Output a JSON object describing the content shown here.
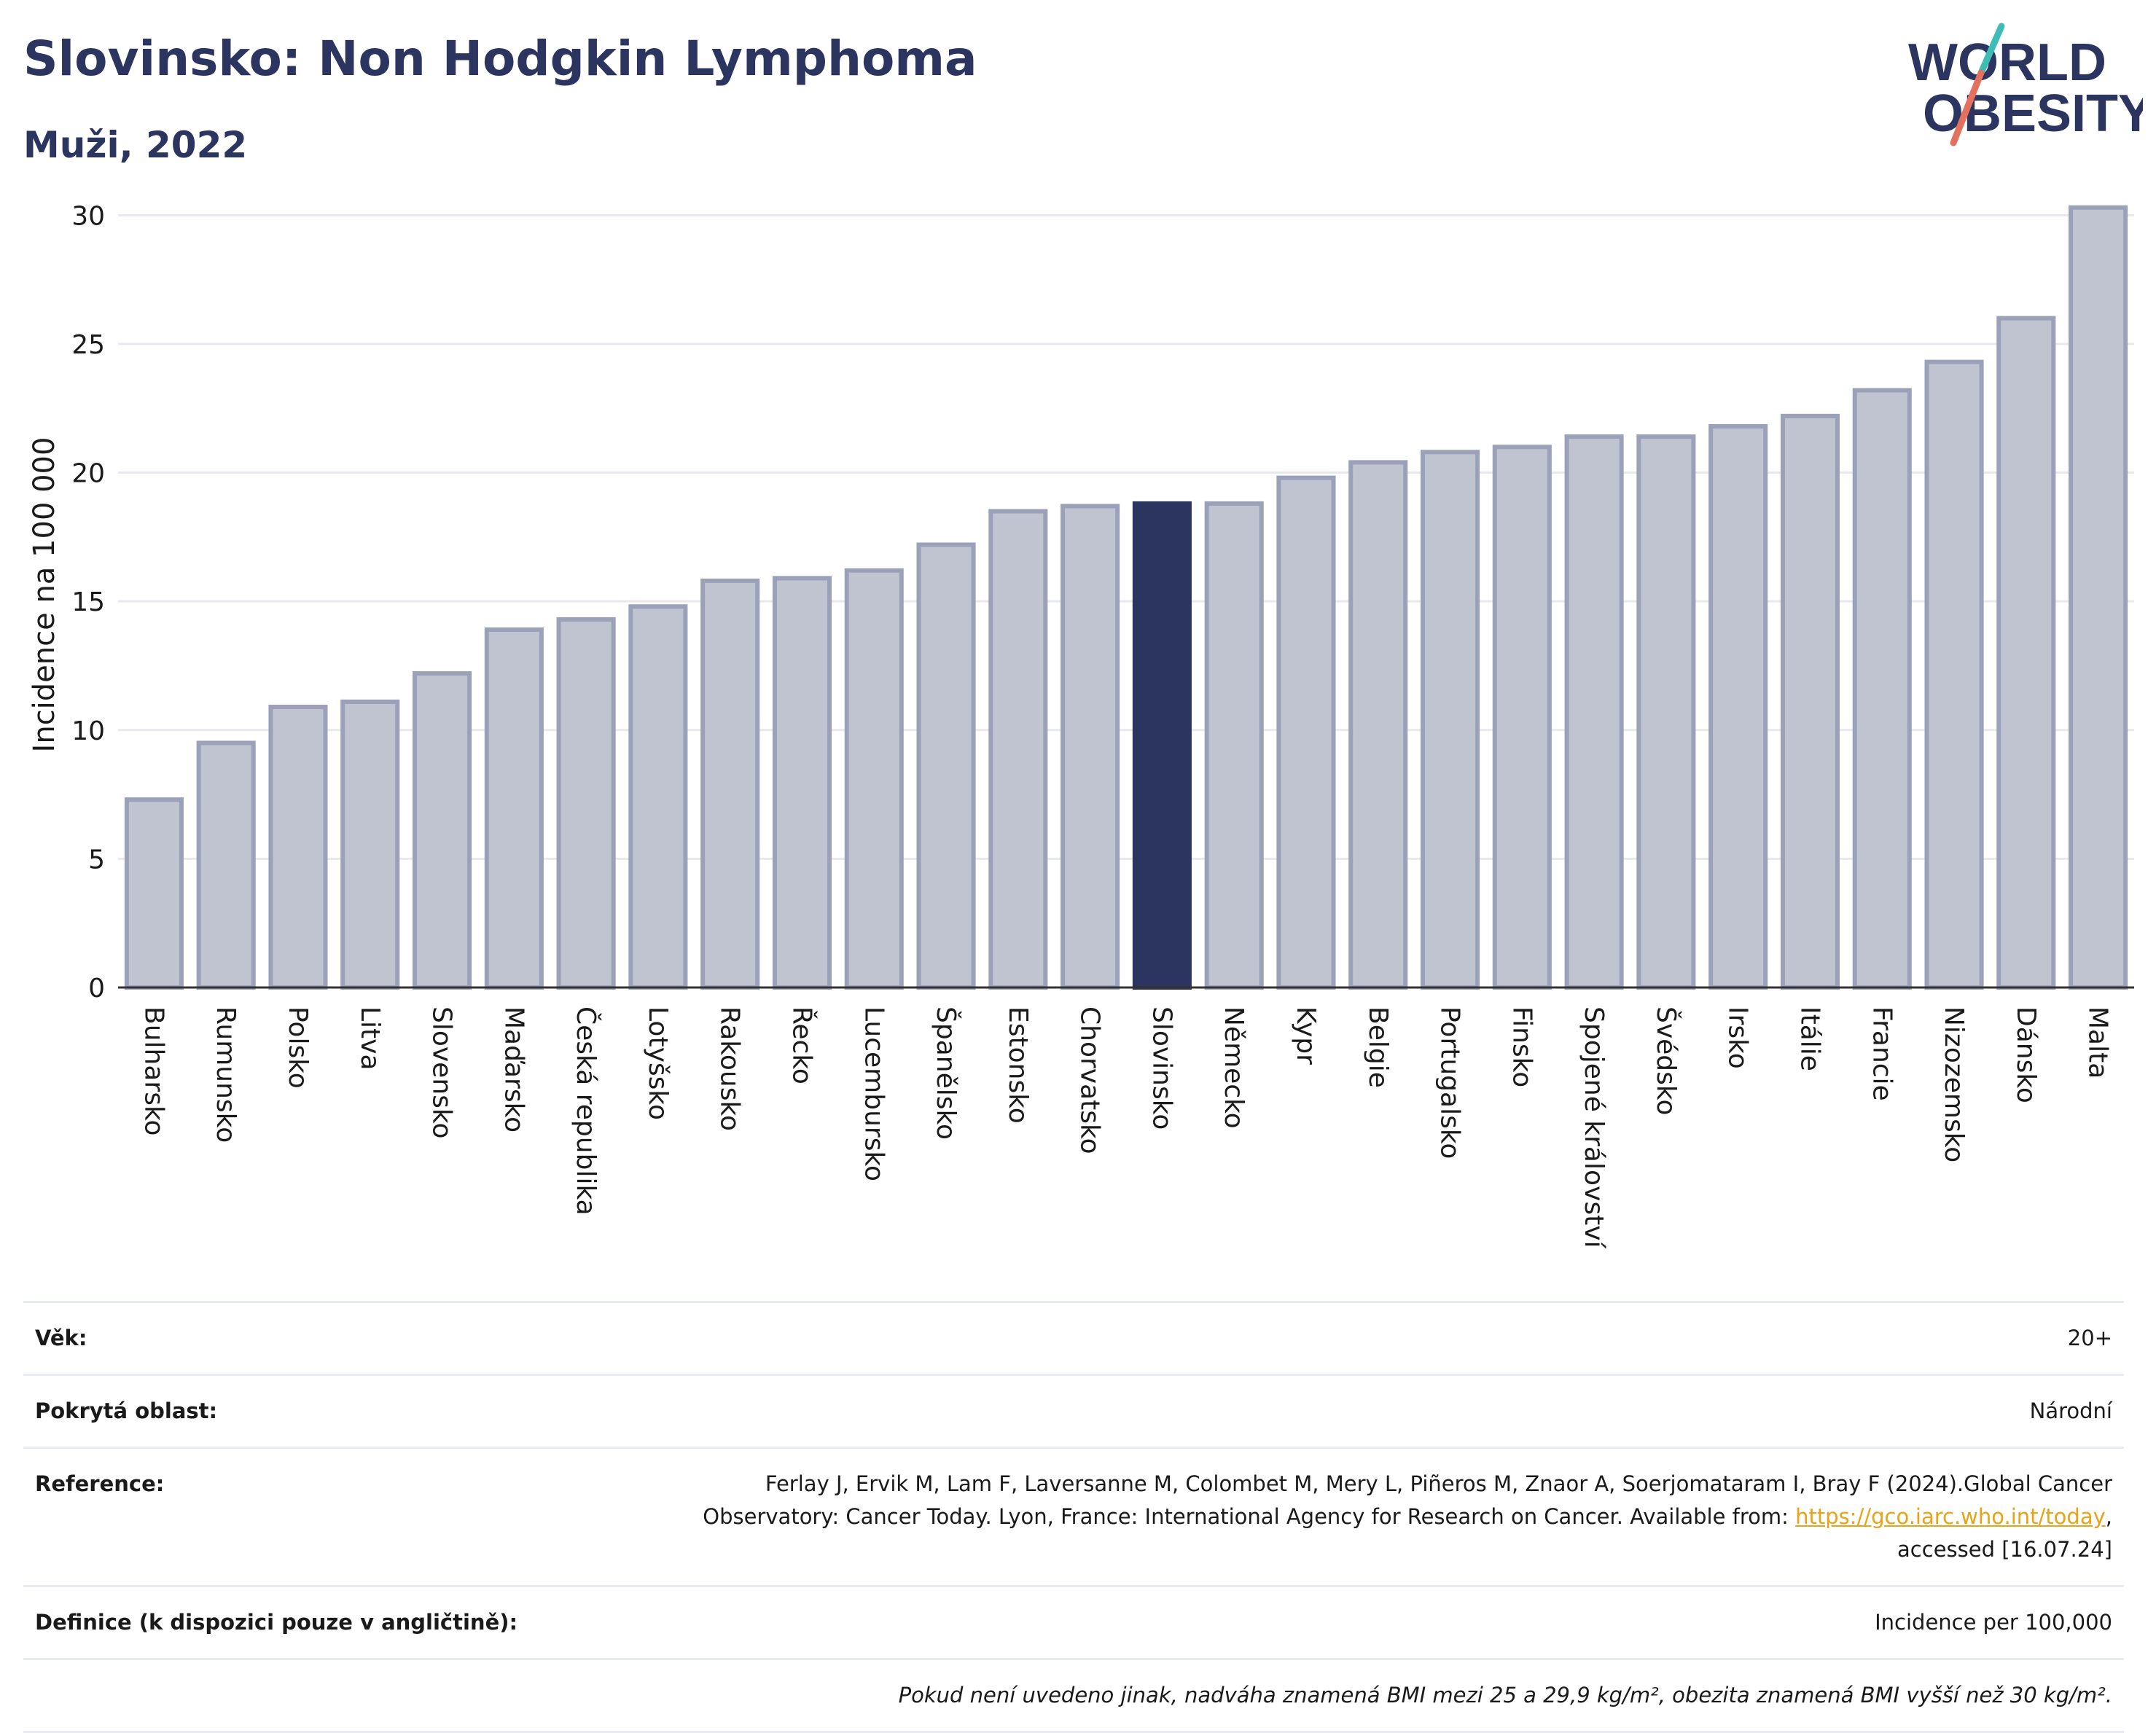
{
  "header": {
    "title": "Slovinsko: Non Hodgkin Lymphoma",
    "subtitle": "Muži, 2022"
  },
  "logo": {
    "line1": "WORLD",
    "line2": "OBESITY",
    "colors": [
      "#2b3560",
      "#e4705f",
      "#3dbdb6"
    ]
  },
  "colors": {
    "bar": "#c0c4d0",
    "bar_border": "#9aa1b8",
    "highlight": "#2b3560",
    "grid": "#e7e9ef",
    "axis": "#333333"
  },
  "chart_data": {
    "type": "bar",
    "ylabel": "Incidence na 100 000",
    "ylim": [
      0,
      31
    ],
    "yticks": [
      0,
      5,
      10,
      15,
      20,
      25,
      30
    ],
    "grid": true,
    "highlight": "Slovinsko",
    "categories": [
      "Bulharsko",
      "Rumunsko",
      "Polsko",
      "Litva",
      "Slovensko",
      "Maďarsko",
      "Česká republika",
      "Lotyšsko",
      "Rakousko",
      "Řecko",
      "Lucembursko",
      "Španělsko",
      "Estonsko",
      "Chorvatsko",
      "Slovinsko",
      "Německo",
      "Kypr",
      "Belgie",
      "Portugalsko",
      "Finsko",
      "Spojené království",
      "Švédsko",
      "Irsko",
      "Itálie",
      "Francie",
      "Nizozemsko",
      "Dánsko",
      "Malta"
    ],
    "values": [
      7.3,
      9.5,
      10.9,
      11.1,
      12.2,
      13.9,
      14.3,
      14.8,
      15.8,
      15.9,
      16.2,
      17.2,
      18.5,
      18.7,
      18.8,
      18.8,
      19.8,
      20.4,
      20.8,
      21.0,
      21.4,
      21.4,
      21.8,
      22.2,
      23.2,
      24.3,
      26.0,
      30.3
    ]
  },
  "info": {
    "age_label": "Věk:",
    "age_value": "20+",
    "area_label": "Pokrytá oblast:",
    "area_value": "Národní",
    "reference_label": "Reference:",
    "reference_text_1": "Ferlay J, Ervik M, Lam F, Laversanne M, Colombet M, Mery L, Piñeros M, Znaor A, Soerjomataram I, Bray F (2024).Global Cancer",
    "reference_text_2": "Observatory: Cancer Today. Lyon, France: International Agency for Research on Cancer. Available from: ",
    "reference_link": "https://gco.iarc.who.int/today",
    "reference_text_3": ",",
    "reference_text_4": "accessed [16.07.24]",
    "definition_label": "Definice (k dispozici pouze v angličtině):",
    "definition_value": "Incidence per 100,000",
    "footnote": "Pokud není uvedeno jinak, nadváha znamená BMI mezi 25 a 29,9 kg/m², obezita znamená BMI vyšší než 30 kg/m²."
  }
}
